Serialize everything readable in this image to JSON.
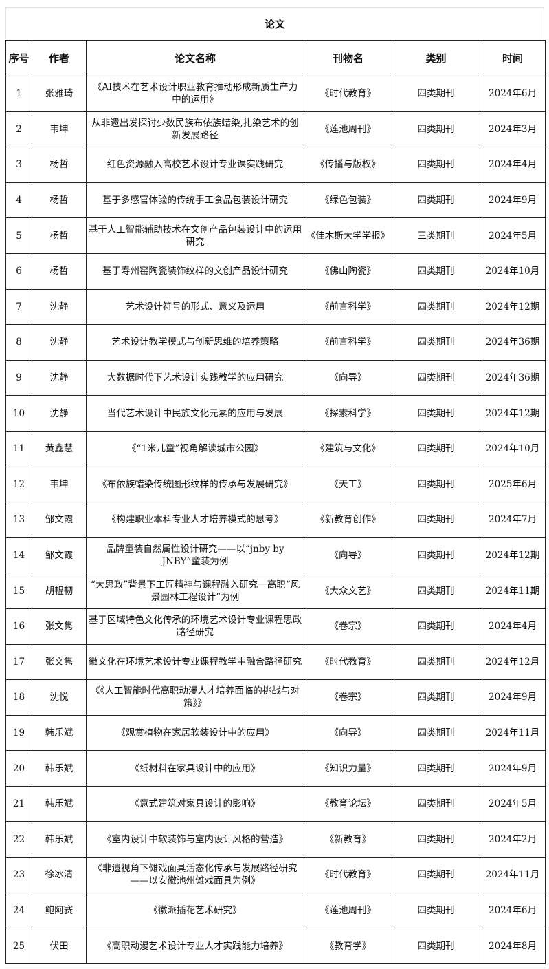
{
  "title": "论文",
  "headers": [
    "序号",
    "作者",
    "论文名称",
    "刊物名",
    "类别",
    "时间"
  ],
  "rows": [
    [
      "1",
      "张雅琦",
      "《AI技术在艺术设计职业教育推动形成新质生产力中的运用》",
      "《时代教育》",
      "四类期刊",
      "2024年6月"
    ],
    [
      "2",
      "韦坤",
      "从非遗出发探讨少数民族布依族蜡染,扎染艺术的创新发展路径",
      "《莲池周刊》",
      "四类期刊",
      "2024年3月"
    ],
    [
      "3",
      "杨哲",
      "红色资源融入高校艺术设计专业课实践研究",
      "《传播与版权》",
      "四类期刊",
      "2024年4月"
    ],
    [
      "4",
      "杨哲",
      "基于多感官体验的传统手工食品包装设计研究",
      "《绿色包装》",
      "四类期刊",
      "2024年9月"
    ],
    [
      "5",
      "杨哲",
      "基于人工智能辅助技术在文创产品包装设计中的运用研究",
      "《佳木斯大学学报》",
      "三类期刊",
      "2024年5月"
    ],
    [
      "6",
      "杨哲",
      "基于寿州窑陶瓷装饰纹样的文创产品设计研究",
      "《佛山陶瓷》",
      "四类期刊",
      "2024年10月"
    ],
    [
      "7",
      "沈静",
      "艺术设计符号的形式、意义及运用",
      "《前言科学》",
      "四类期刊",
      "2024年12期"
    ],
    [
      "8",
      "沈静",
      "艺术设计教学模式与创新思维的培养策略",
      "《前言科学》",
      "四类期刊",
      "2024年36期"
    ],
    [
      "9",
      "沈静",
      "大数据时代下艺术设计实践教学的应用研究",
      "《向导》",
      "四类期刊",
      "2024年36期"
    ],
    [
      "10",
      "沈静",
      "当代艺术设计中民族文化元素的应用与发展",
      "《探索科学》",
      "四类期刊",
      "2024年12期"
    ],
    [
      "11",
      "黄鑫慧",
      "《“1米儿童”视角解读城市公园》",
      "《建筑与文化》",
      "四类期刊",
      "2024年10月"
    ],
    [
      "12",
      "韦坤",
      "《布依族蜡染传统图形纹样的传承与发展研究》",
      "《天工》",
      "四类期刊",
      "2025年6月"
    ],
    [
      "13",
      "邹文霞",
      "《构建职业本科专业人才培养模式的思考》",
      "《新教育创作》",
      "四类期刊",
      "2024年7月"
    ],
    [
      "14",
      "邹文霞",
      "品牌童装自然属性设计研究——以“jnby by JNBY”童装为例",
      "《向导》",
      "四类期刊",
      "2024年12期"
    ],
    [
      "15",
      "胡韫韧",
      "“大思政”背景下工匠精神与课程融入研究一高职“风景园林工程设计”为例",
      "《大众文艺》",
      "四类期刊",
      "2024年11期"
    ],
    [
      "16",
      "张文隽",
      "基于区域特色文化传承的环境艺术设计专业课程思政路径研究",
      "《卷宗》",
      "四类期刊",
      "2024年4月"
    ],
    [
      "17",
      "张文隽",
      "徽文化在环境艺术设计专业课程教学中融合路径研究",
      "《时代教育》",
      "四类期刊",
      "2024年12月"
    ],
    [
      "18",
      "沈悦",
      "《《人工智能时代高职动漫人才培养面临的挑战与对策》》",
      "《卷宗》",
      "四类期刊",
      "2024年9月"
    ],
    [
      "19",
      "韩乐斌",
      "《观赏植物在家居软装设计中的应用》",
      "《向导》",
      "四类期刊",
      "2024年11月"
    ],
    [
      "20",
      "韩乐斌",
      "《纸材料在家具设计中的应用》",
      "《知识力量》",
      "四类期刊",
      "2024年9月"
    ],
    [
      "21",
      "韩乐斌",
      "《意式建筑对家具设计的影响》",
      "《教育论坛》",
      "四类期刊",
      "2024年5月"
    ],
    [
      "22",
      "韩乐斌",
      "《室内设计中软装饰与室内设计风格的营造》",
      "《新教育》",
      "四类期刊",
      "2024年2月"
    ],
    [
      "23",
      "徐冰清",
      "《非遗视角下傩戏面具活态化传承与发展路径研究——以安徽池州傩戏面具为例》",
      "《时代教育》",
      "四类期刊",
      "2024年11月"
    ],
    [
      "24",
      "鲍阿赛",
      "《徽派插花艺术研究》",
      "《莲池周刊》",
      "四类期刊",
      "2024年6月"
    ],
    [
      "25",
      "伏田",
      "《高职动漫艺术设计专业人才实践能力培养》",
      "《教育学》",
      "四类期刊",
      "2024年8月"
    ]
  ]
}
